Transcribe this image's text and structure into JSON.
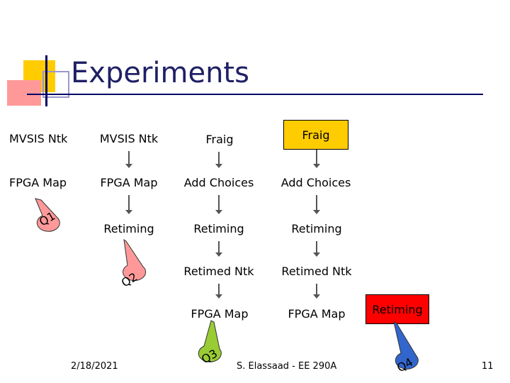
{
  "slide": {
    "title": "Experiments",
    "footer_date": "2/18/2021",
    "footer_author": "S. Elassaad - EE 290A",
    "page_number": "11"
  },
  "flow": {
    "col1": [
      "MVSIS Ntk",
      "FPGA Map"
    ],
    "col2": [
      "MVSIS Ntk",
      "FPGA Map",
      "Retiming"
    ],
    "col3": [
      "Fraig",
      "Add Choices",
      "Retiming",
      "Retimed Ntk",
      "FPGA Map"
    ],
    "col4": [
      "Fraig",
      "Add Choices",
      "Retiming",
      "Retimed Ntk",
      "FPGA Map"
    ],
    "extra": "Retiming"
  },
  "bubbles": {
    "q1": "Q1",
    "q2": "Q2",
    "q3": "Q3",
    "q4": "Q4"
  },
  "colors": {
    "yellow": "#ffcc00",
    "red": "#ff0000",
    "green": "#99cc33",
    "pink": "#ff9999",
    "blue": "#3366cc",
    "title": "#1f1f66"
  }
}
